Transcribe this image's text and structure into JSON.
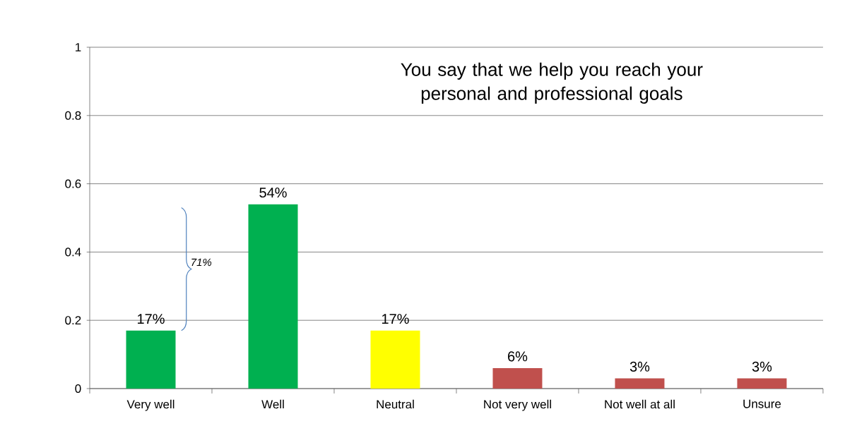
{
  "chart_data": {
    "type": "bar",
    "title": "You say that we help you reach your personal and professional goals",
    "categories": [
      "Very well",
      "Well",
      "Neutral",
      "Not very well",
      "Not well at all",
      "Unsure"
    ],
    "values": [
      0.17,
      0.54,
      0.17,
      0.06,
      0.03,
      0.03
    ],
    "colors": [
      "#00b050",
      "#00b050",
      "#ffff00",
      "#c0504d",
      "#c0504d",
      "#c0504d"
    ],
    "value_labels": [
      "17%",
      "54%",
      "17%",
      "6%",
      "3%",
      "3%"
    ],
    "annotations": [
      "71%"
    ],
    "ylim": [
      0,
      1
    ],
    "yticks": [
      0,
      0.2,
      0.4,
      0.6,
      0.8,
      1
    ],
    "grid": "y"
  }
}
